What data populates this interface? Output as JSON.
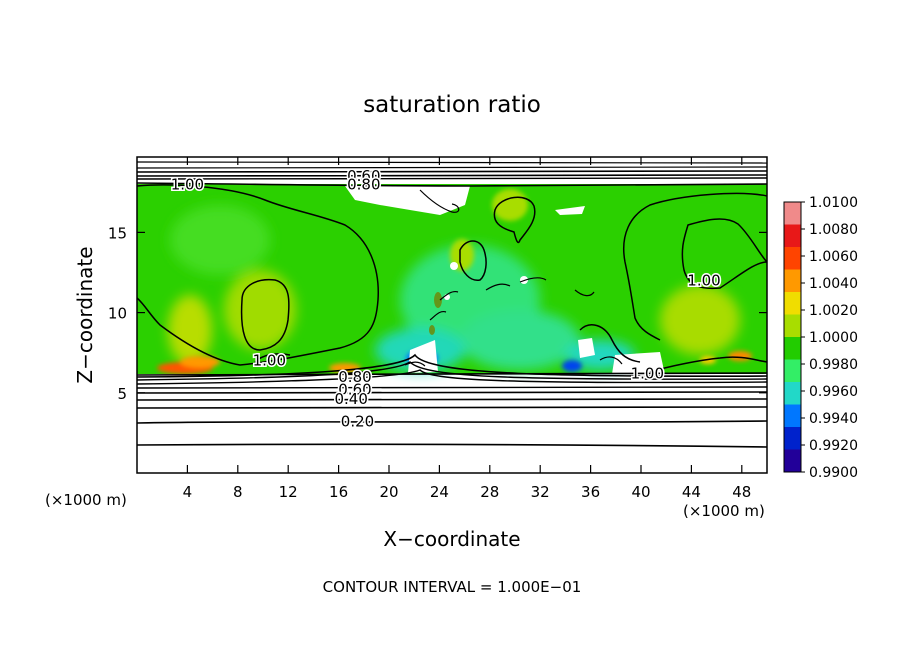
{
  "chart_data": {
    "type": "heatmap",
    "title": "saturation ratio",
    "xlabel": "X−coordinate",
    "ylabel": "Z−coordinate",
    "x_unit": "(×1000 m)",
    "x_unit_right": "(×1000 m)",
    "xlim": [
      0,
      50
    ],
    "ylim": [
      0,
      19.7
    ],
    "x_ticks": [
      4,
      8,
      12,
      16,
      20,
      24,
      28,
      32,
      36,
      40,
      44,
      48
    ],
    "y_ticks": [
      5,
      10,
      15
    ],
    "footer": "CONTOUR INTERVAL = 1.000E−01",
    "colorbar": {
      "labels": [
        "1.0100",
        "1.0080",
        "1.0060",
        "1.0040",
        "1.0020",
        "1.0000",
        "0.9980",
        "0.9960",
        "0.9940",
        "0.9920",
        "0.9900"
      ],
      "colors": [
        "#f08a8a",
        "#e81818",
        "#ff4400",
        "#ff9900",
        "#f0dd00",
        "#a8dd00",
        "#22cc00",
        "#33ee66",
        "#22d8c8",
        "#0077ff",
        "#0022cc",
        "#220099"
      ]
    },
    "contour_labels": [
      {
        "text": "0.60",
        "x": 18.0,
        "y": 18.5
      },
      {
        "text": "0.80",
        "x": 18.0,
        "y": 18.0
      },
      {
        "text": "1.00",
        "x": 4.0,
        "y": 18.0
      },
      {
        "text": "1.00",
        "x": 45.0,
        "y": 12.0
      },
      {
        "text": "1.00",
        "x": 10.5,
        "y": 7.0
      },
      {
        "text": "1.00",
        "x": 40.5,
        "y": 6.2
      },
      {
        "text": "0.80",
        "x": 17.3,
        "y": 6.0
      },
      {
        "text": "0.60",
        "x": 17.3,
        "y": 5.2
      },
      {
        "text": "0.40",
        "x": 17.0,
        "y": 4.6
      },
      {
        "text": "0.20",
        "x": 17.5,
        "y": 3.2
      }
    ]
  }
}
